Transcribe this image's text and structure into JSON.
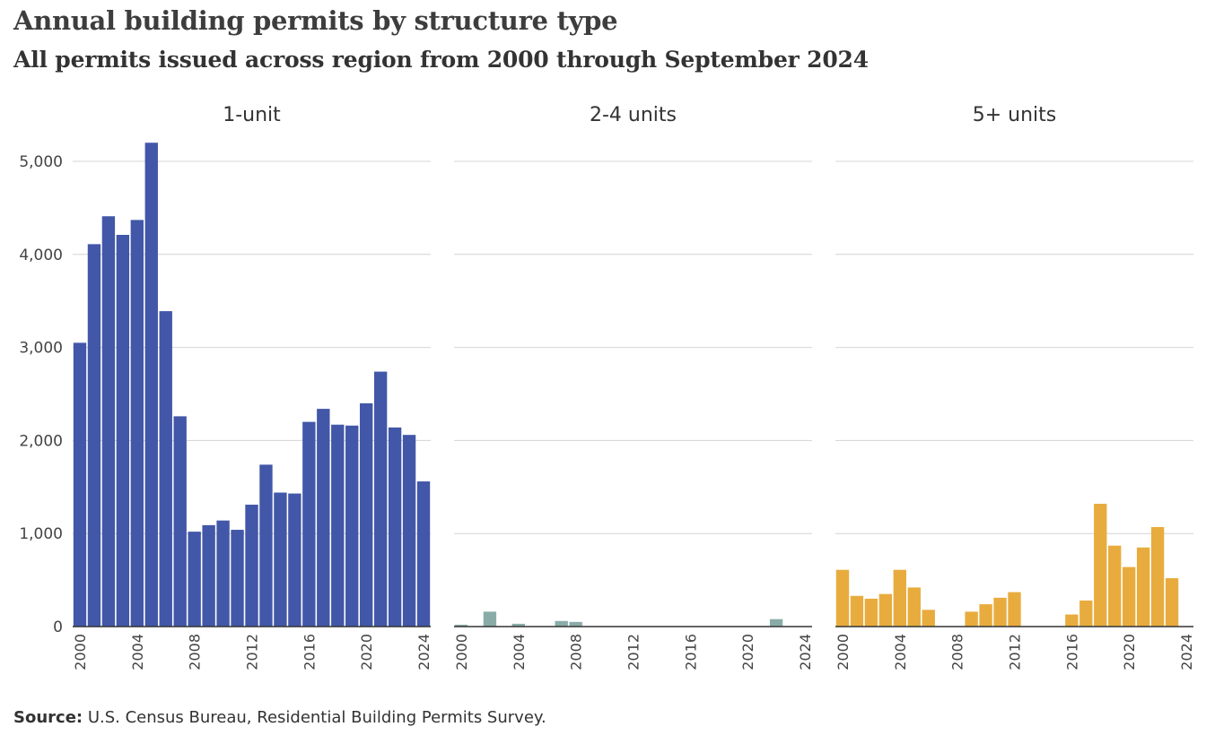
{
  "title": "Annual building permits by structure type",
  "subtitle": "All permits issued across region from 2000 through September 2024",
  "source_label": "Source:",
  "source_text": " U.S. Census Bureau, Residential Building Permits  Survey.",
  "chart_data": {
    "type": "bar",
    "layout": "small-multiples",
    "ylim": [
      0,
      5200
    ],
    "yticks": [
      0,
      1000,
      2000,
      3000,
      4000,
      5000
    ],
    "ytick_labels": [
      "0",
      "1,000",
      "2,000",
      "3,000",
      "4,000",
      "5,000"
    ],
    "xticks": [
      2000,
      2004,
      2008,
      2012,
      2016,
      2020,
      2024
    ],
    "xtick_labels": [
      "2000",
      "2004",
      "2008",
      "2012",
      "2016",
      "2020",
      "2024"
    ],
    "grid": true,
    "categories": [
      2000,
      2001,
      2002,
      2003,
      2004,
      2005,
      2006,
      2007,
      2008,
      2009,
      2010,
      2011,
      2012,
      2013,
      2014,
      2015,
      2016,
      2017,
      2018,
      2019,
      2020,
      2021,
      2022,
      2023,
      2024
    ],
    "series": [
      {
        "name": "1-unit",
        "color": "#4257a8",
        "values": [
          3050,
          4110,
          4410,
          4210,
          4370,
          5200,
          3390,
          2260,
          1020,
          1090,
          1140,
          1040,
          1310,
          1740,
          1440,
          1430,
          2200,
          2340,
          2170,
          2160,
          2400,
          2740,
          2140,
          2060,
          1560
        ]
      },
      {
        "name": "2-4 units",
        "color": "#8aaca8",
        "values": [
          20,
          0,
          160,
          0,
          30,
          0,
          0,
          60,
          50,
          0,
          0,
          0,
          0,
          0,
          0,
          0,
          0,
          0,
          0,
          0,
          0,
          0,
          80,
          0,
          0
        ]
      },
      {
        "name": "5+ units",
        "color": "#e8ac3e",
        "values": [
          610,
          330,
          300,
          350,
          610,
          420,
          180,
          0,
          0,
          160,
          240,
          310,
          370,
          0,
          0,
          0,
          130,
          280,
          1320,
          870,
          640,
          850,
          1070,
          520,
          0
        ]
      }
    ]
  }
}
